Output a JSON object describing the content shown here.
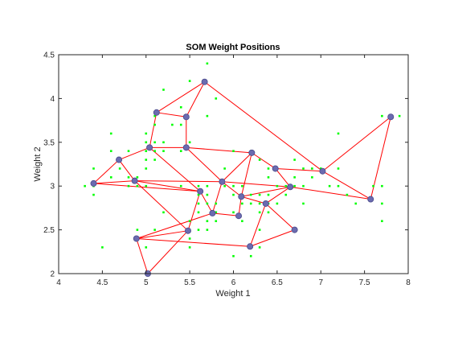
{
  "chart_data": {
    "type": "scatter",
    "title": "SOM Weight Positions",
    "xlabel": "Weight 1",
    "ylabel": "Weight 2",
    "xlim": [
      4,
      8
    ],
    "ylim": [
      2,
      4.5
    ],
    "xticks": [
      "4",
      "4.5",
      "5",
      "5.5",
      "6",
      "6.5",
      "7",
      "7.5",
      "8"
    ],
    "yticks": [
      "2",
      "2.5",
      "3",
      "3.5",
      "4",
      "4.5"
    ],
    "grid": false,
    "colors": {
      "data_points": "#00ff00",
      "neurons": "#6b6bb0",
      "neuron_edge": "#4a4a8a",
      "connections": "#ff0000",
      "axes": "#262626"
    },
    "data_points": [
      [
        4.4,
        2.9
      ],
      [
        4.3,
        3.0
      ],
      [
        4.4,
        3.0
      ],
      [
        4.4,
        3.2
      ],
      [
        4.5,
        2.3
      ],
      [
        4.6,
        3.1
      ],
      [
        4.6,
        3.4
      ],
      [
        4.6,
        3.6
      ],
      [
        4.7,
        3.2
      ],
      [
        4.8,
        3.0
      ],
      [
        4.8,
        3.1
      ],
      [
        4.8,
        3.4
      ],
      [
        4.9,
        2.4
      ],
      [
        4.9,
        2.5
      ],
      [
        4.9,
        3.0
      ],
      [
        4.9,
        3.1
      ],
      [
        5.0,
        2.0
      ],
      [
        5.0,
        2.3
      ],
      [
        5.0,
        3.0
      ],
      [
        5.0,
        3.2
      ],
      [
        5.0,
        3.3
      ],
      [
        5.0,
        3.4
      ],
      [
        5.0,
        3.5
      ],
      [
        5.0,
        3.6
      ],
      [
        5.1,
        2.5
      ],
      [
        5.1,
        3.3
      ],
      [
        5.1,
        3.4
      ],
      [
        5.1,
        3.5
      ],
      [
        5.1,
        3.7
      ],
      [
        5.1,
        3.8
      ],
      [
        5.2,
        2.7
      ],
      [
        5.2,
        3.4
      ],
      [
        5.2,
        3.5
      ],
      [
        5.2,
        4.1
      ],
      [
        5.3,
        3.7
      ],
      [
        5.4,
        3.0
      ],
      [
        5.4,
        3.4
      ],
      [
        5.4,
        3.7
      ],
      [
        5.4,
        3.9
      ],
      [
        5.5,
        2.3
      ],
      [
        5.5,
        2.4
      ],
      [
        5.5,
        2.5
      ],
      [
        5.5,
        2.6
      ],
      [
        5.5,
        3.5
      ],
      [
        5.5,
        4.2
      ],
      [
        5.6,
        2.5
      ],
      [
        5.6,
        2.7
      ],
      [
        5.6,
        2.8
      ],
      [
        5.6,
        2.9
      ],
      [
        5.6,
        3.0
      ],
      [
        5.7,
        2.5
      ],
      [
        5.7,
        2.6
      ],
      [
        5.7,
        2.8
      ],
      [
        5.7,
        2.9
      ],
      [
        5.7,
        3.0
      ],
      [
        5.7,
        3.8
      ],
      [
        5.7,
        4.4
      ],
      [
        5.8,
        2.6
      ],
      [
        5.8,
        2.7
      ],
      [
        5.8,
        2.8
      ],
      [
        5.8,
        4.0
      ],
      [
        5.9,
        3.0
      ],
      [
        5.9,
        3.2
      ],
      [
        6.0,
        2.2
      ],
      [
        6.0,
        2.7
      ],
      [
        6.0,
        2.9
      ],
      [
        6.0,
        3.0
      ],
      [
        6.0,
        3.4
      ],
      [
        6.1,
        2.6
      ],
      [
        6.1,
        2.8
      ],
      [
        6.1,
        2.9
      ],
      [
        6.1,
        3.0
      ],
      [
        6.2,
        2.2
      ],
      [
        6.2,
        2.8
      ],
      [
        6.2,
        2.9
      ],
      [
        6.2,
        3.4
      ],
      [
        6.3,
        2.3
      ],
      [
        6.3,
        2.5
      ],
      [
        6.3,
        2.7
      ],
      [
        6.3,
        2.8
      ],
      [
        6.3,
        2.9
      ],
      [
        6.3,
        3.3
      ],
      [
        6.4,
        2.7
      ],
      [
        6.4,
        2.8
      ],
      [
        6.4,
        2.9
      ],
      [
        6.4,
        3.1
      ],
      [
        6.4,
        3.2
      ],
      [
        6.5,
        2.8
      ],
      [
        6.5,
        3.0
      ],
      [
        6.5,
        3.2
      ],
      [
        6.6,
        2.9
      ],
      [
        6.6,
        3.0
      ],
      [
        6.7,
        2.5
      ],
      [
        6.7,
        3.0
      ],
      [
        6.7,
        3.1
      ],
      [
        6.7,
        3.3
      ],
      [
        6.8,
        2.8
      ],
      [
        6.8,
        3.0
      ],
      [
        6.8,
        3.2
      ],
      [
        6.9,
        3.1
      ],
      [
        6.9,
        3.2
      ],
      [
        7.0,
        3.2
      ],
      [
        7.1,
        3.0
      ],
      [
        7.2,
        3.0
      ],
      [
        7.2,
        3.2
      ],
      [
        7.2,
        3.6
      ],
      [
        7.3,
        2.9
      ],
      [
        7.4,
        2.8
      ],
      [
        7.6,
        3.0
      ],
      [
        7.7,
        2.6
      ],
      [
        7.7,
        2.8
      ],
      [
        7.7,
        3.0
      ],
      [
        7.7,
        3.8
      ],
      [
        7.9,
        3.8
      ]
    ],
    "neurons": [
      [
        5.67,
        4.19
      ],
      [
        5.12,
        3.84
      ],
      [
        5.46,
        3.79
      ],
      [
        7.8,
        3.79
      ],
      [
        5.04,
        3.44
      ],
      [
        5.46,
        3.44
      ],
      [
        4.69,
        3.3
      ],
      [
        6.21,
        3.38
      ],
      [
        6.48,
        3.2
      ],
      [
        7.02,
        3.17
      ],
      [
        4.4,
        3.03
      ],
      [
        4.87,
        3.06
      ],
      [
        5.87,
        3.05
      ],
      [
        6.65,
        2.99
      ],
      [
        5.62,
        2.94
      ],
      [
        6.09,
        2.88
      ],
      [
        7.57,
        2.85
      ],
      [
        6.37,
        2.8
      ],
      [
        5.76,
        2.69
      ],
      [
        6.06,
        2.66
      ],
      [
        6.7,
        2.5
      ],
      [
        5.48,
        2.49
      ],
      [
        4.89,
        2.4
      ],
      [
        6.19,
        2.31
      ],
      [
        5.02,
        2.0
      ]
    ],
    "connections": [
      [
        0,
        1
      ],
      [
        0,
        2
      ],
      [
        0,
        9
      ],
      [
        1,
        2
      ],
      [
        1,
        4
      ],
      [
        2,
        5
      ],
      [
        3,
        9
      ],
      [
        3,
        16
      ],
      [
        4,
        5
      ],
      [
        4,
        6
      ],
      [
        4,
        14
      ],
      [
        5,
        7
      ],
      [
        6,
        10
      ],
      [
        6,
        11
      ],
      [
        7,
        8
      ],
      [
        7,
        12
      ],
      [
        8,
        9
      ],
      [
        8,
        13
      ],
      [
        9,
        16
      ],
      [
        10,
        11
      ],
      [
        10,
        14
      ],
      [
        11,
        12
      ],
      [
        11,
        14
      ],
      [
        11,
        21
      ],
      [
        12,
        15
      ],
      [
        12,
        18
      ],
      [
        13,
        15
      ],
      [
        13,
        16
      ],
      [
        13,
        17
      ],
      [
        14,
        18
      ],
      [
        14,
        21
      ],
      [
        15,
        17
      ],
      [
        15,
        19
      ],
      [
        17,
        20
      ],
      [
        17,
        23
      ],
      [
        18,
        19
      ],
      [
        18,
        22
      ],
      [
        20,
        23
      ],
      [
        21,
        22
      ],
      [
        21,
        24
      ],
      [
        22,
        23
      ],
      [
        22,
        24
      ],
      [
        5,
        12
      ],
      [
        7,
        15
      ],
      [
        12,
        13
      ]
    ]
  }
}
